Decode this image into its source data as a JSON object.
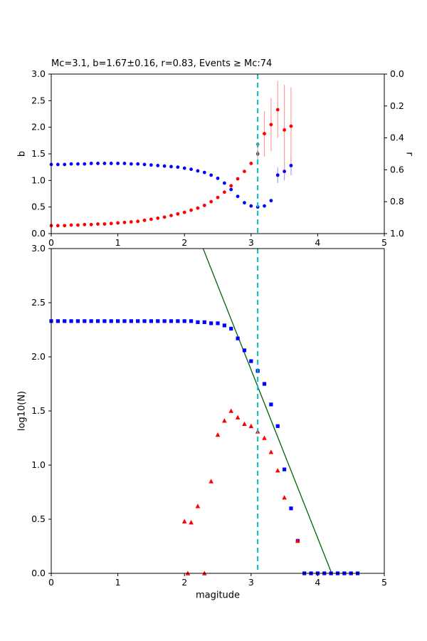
{
  "figure": {
    "background": "#ffffff",
    "accent_colors": {
      "b_series": "#0000ff",
      "r_series": "#ff0000",
      "error_pink": "#ffa0a0",
      "error_lightblue": "#9f9fff",
      "mc_line": "#00bfbf",
      "fit_line": "#006400",
      "mc_point": "#7f7f7f"
    }
  },
  "chart_data": [
    {
      "id": "b-value-panel",
      "type": "scatter",
      "title": "Mc=3.1, b=1.67±0.16, r=0.83, Events ≥ Mc:74",
      "xlabel": "",
      "ylabel_left": "b",
      "ylabel_right": "r",
      "xlim": [
        0,
        5
      ],
      "ylim_left": [
        0,
        3
      ],
      "ylim_right": [
        0,
        1
      ],
      "xticks": [
        0,
        1,
        2,
        3,
        4,
        5
      ],
      "xtick_labels": [
        "0",
        "1",
        "2",
        "3",
        "4",
        "5"
      ],
      "yticks_left": [
        0.0,
        0.5,
        1.0,
        1.5,
        2.0,
        2.5,
        3.0
      ],
      "ytick_left_labels": [
        "0.0",
        "0.5",
        "1.0",
        "1.5",
        "2.0",
        "2.5",
        "3.0"
      ],
      "yticks_right": [
        0.0,
        0.2,
        0.4,
        0.6,
        0.8,
        1.0
      ],
      "ytick_right_labels": [
        "0.0",
        "0.2",
        "0.4",
        "0.6",
        "0.8",
        "1.0"
      ],
      "grid": false,
      "vline": {
        "x": 3.1,
        "color": "#00bfbf",
        "style": "dashed",
        "name": "mc-vline"
      },
      "series": [
        {
          "name": "b-value-series",
          "marker": "circle",
          "color": "#0000ff",
          "error_color": "#9f9fff",
          "errors": [
            {
              "x": 3.4,
              "lo": 0.95,
              "hi": 1.25
            },
            {
              "x": 3.5,
              "lo": 1.0,
              "hi": 1.34
            },
            {
              "x": 3.6,
              "lo": 1.1,
              "hi": 1.46
            }
          ],
          "points": [
            [
              0.0,
              1.3
            ],
            [
              0.1,
              1.3
            ],
            [
              0.2,
              1.3
            ],
            [
              0.3,
              1.31
            ],
            [
              0.4,
              1.31
            ],
            [
              0.5,
              1.31
            ],
            [
              0.6,
              1.32
            ],
            [
              0.7,
              1.32
            ],
            [
              0.8,
              1.32
            ],
            [
              0.9,
              1.32
            ],
            [
              1.0,
              1.32
            ],
            [
              1.1,
              1.32
            ],
            [
              1.2,
              1.31
            ],
            [
              1.3,
              1.31
            ],
            [
              1.4,
              1.3
            ],
            [
              1.5,
              1.29
            ],
            [
              1.6,
              1.28
            ],
            [
              1.7,
              1.27
            ],
            [
              1.8,
              1.26
            ],
            [
              1.9,
              1.25
            ],
            [
              2.0,
              1.23
            ],
            [
              2.1,
              1.21
            ],
            [
              2.2,
              1.18
            ],
            [
              2.3,
              1.15
            ],
            [
              2.4,
              1.1
            ],
            [
              2.5,
              1.04
            ],
            [
              2.6,
              0.95
            ],
            [
              2.7,
              0.83
            ],
            [
              2.8,
              0.7
            ],
            [
              2.9,
              0.58
            ],
            [
              3.0,
              0.52
            ],
            [
              3.1,
              0.5
            ],
            [
              3.2,
              0.52
            ],
            [
              3.3,
              0.62
            ],
            [
              3.4,
              1.1
            ],
            [
              3.5,
              1.17
            ],
            [
              3.6,
              1.28
            ]
          ]
        },
        {
          "name": "r-value-series",
          "marker": "circle",
          "color": "#ff0000",
          "error_color": "#ffa0a0",
          "errors": [
            {
              "x": 3.1,
              "lo": 1.35,
              "hi": 1.65
            },
            {
              "x": 3.2,
              "lo": 1.45,
              "hi": 2.3
            },
            {
              "x": 3.3,
              "lo": 1.55,
              "hi": 2.55
            },
            {
              "x": 3.4,
              "lo": 1.8,
              "hi": 2.87
            },
            {
              "x": 3.5,
              "lo": 1.1,
              "hi": 2.8
            },
            {
              "x": 3.6,
              "lo": 1.3,
              "hi": 2.75
            }
          ],
          "points": [
            [
              0.0,
              0.15
            ],
            [
              0.1,
              0.15
            ],
            [
              0.2,
              0.15
            ],
            [
              0.3,
              0.16
            ],
            [
              0.4,
              0.16
            ],
            [
              0.5,
              0.17
            ],
            [
              0.6,
              0.17
            ],
            [
              0.7,
              0.18
            ],
            [
              0.8,
              0.18
            ],
            [
              0.9,
              0.19
            ],
            [
              1.0,
              0.2
            ],
            [
              1.1,
              0.21
            ],
            [
              1.2,
              0.22
            ],
            [
              1.3,
              0.23
            ],
            [
              1.4,
              0.25
            ],
            [
              1.5,
              0.27
            ],
            [
              1.6,
              0.29
            ],
            [
              1.7,
              0.31
            ],
            [
              1.8,
              0.34
            ],
            [
              1.9,
              0.37
            ],
            [
              2.0,
              0.4
            ],
            [
              2.1,
              0.44
            ],
            [
              2.2,
              0.48
            ],
            [
              2.3,
              0.53
            ],
            [
              2.4,
              0.6
            ],
            [
              2.5,
              0.68
            ],
            [
              2.6,
              0.78
            ],
            [
              2.7,
              0.9
            ],
            [
              2.8,
              1.03
            ],
            [
              2.9,
              1.17
            ],
            [
              3.0,
              1.32
            ],
            [
              3.1,
              1.5
            ],
            [
              3.2,
              1.88
            ],
            [
              3.3,
              2.05
            ],
            [
              3.4,
              2.33
            ],
            [
              3.5,
              1.95
            ],
            [
              3.6,
              2.02
            ]
          ]
        },
        {
          "name": "mc-point",
          "marker": "circle",
          "color": "#7f7f7f",
          "points": [
            [
              3.1,
              1.68
            ]
          ]
        }
      ]
    },
    {
      "id": "fmd-panel",
      "type": "scatter",
      "title": "",
      "xlabel": "magitude",
      "ylabel_left": "log10(N)",
      "xlim": [
        0,
        5
      ],
      "ylim_left": [
        0,
        3
      ],
      "xticks": [
        0,
        1,
        2,
        3,
        4,
        5
      ],
      "xtick_labels": [
        "0",
        "1",
        "2",
        "3",
        "4",
        "5"
      ],
      "yticks_left": [
        0.0,
        0.5,
        1.0,
        1.5,
        2.0,
        2.5,
        3.0
      ],
      "ytick_left_labels": [
        "0.0",
        "0.5",
        "1.0",
        "1.5",
        "2.0",
        "2.5",
        "3.0"
      ],
      "grid": false,
      "vline": {
        "x": 3.1,
        "color": "#00bfbf",
        "style": "dashed",
        "name": "mc-vline"
      },
      "line": {
        "name": "gr-fit-line",
        "color": "#006400",
        "from": [
          2.28,
          3.0
        ],
        "to": [
          4.21,
          0.0
        ]
      },
      "series": [
        {
          "name": "cumulative-series",
          "marker": "square",
          "color": "#0000ff",
          "points": [
            [
              0.0,
              2.33
            ],
            [
              0.1,
              2.33
            ],
            [
              0.2,
              2.33
            ],
            [
              0.3,
              2.33
            ],
            [
              0.4,
              2.33
            ],
            [
              0.5,
              2.33
            ],
            [
              0.6,
              2.33
            ],
            [
              0.7,
              2.33
            ],
            [
              0.8,
              2.33
            ],
            [
              0.9,
              2.33
            ],
            [
              1.0,
              2.33
            ],
            [
              1.1,
              2.33
            ],
            [
              1.2,
              2.33
            ],
            [
              1.3,
              2.33
            ],
            [
              1.4,
              2.33
            ],
            [
              1.5,
              2.33
            ],
            [
              1.6,
              2.33
            ],
            [
              1.7,
              2.33
            ],
            [
              1.8,
              2.33
            ],
            [
              1.9,
              2.33
            ],
            [
              2.0,
              2.33
            ],
            [
              2.1,
              2.33
            ],
            [
              2.2,
              2.32
            ],
            [
              2.3,
              2.32
            ],
            [
              2.4,
              2.31
            ],
            [
              2.5,
              2.31
            ],
            [
              2.6,
              2.29
            ],
            [
              2.7,
              2.26
            ],
            [
              2.8,
              2.17
            ],
            [
              2.9,
              2.06
            ],
            [
              3.0,
              1.96
            ],
            [
              3.1,
              1.87
            ],
            [
              3.2,
              1.75
            ],
            [
              3.3,
              1.56
            ],
            [
              3.4,
              1.36
            ],
            [
              3.5,
              0.96
            ],
            [
              3.6,
              0.6
            ],
            [
              3.7,
              0.3
            ],
            [
              3.8,
              0.0
            ],
            [
              3.9,
              0.0
            ],
            [
              4.0,
              0.0
            ],
            [
              4.1,
              0.0
            ],
            [
              4.2,
              0.0
            ],
            [
              4.3,
              0.0
            ],
            [
              4.4,
              0.0
            ],
            [
              4.5,
              0.0
            ],
            [
              4.6,
              0.0
            ]
          ]
        },
        {
          "name": "incremental-series",
          "marker": "triangle",
          "color": "#ff0000",
          "points": [
            [
              2.0,
              0.48
            ],
            [
              2.05,
              0.0
            ],
            [
              2.1,
              0.47
            ],
            [
              2.2,
              0.62
            ],
            [
              2.3,
              0.0
            ],
            [
              2.4,
              0.85
            ],
            [
              2.5,
              1.28
            ],
            [
              2.6,
              1.41
            ],
            [
              2.7,
              1.5
            ],
            [
              2.8,
              1.44
            ],
            [
              2.9,
              1.38
            ],
            [
              3.0,
              1.36
            ],
            [
              3.1,
              1.31
            ],
            [
              3.2,
              1.25
            ],
            [
              3.3,
              1.12
            ],
            [
              3.4,
              0.95
            ],
            [
              3.5,
              0.7
            ],
            [
              3.7,
              0.3
            ]
          ]
        }
      ]
    }
  ]
}
